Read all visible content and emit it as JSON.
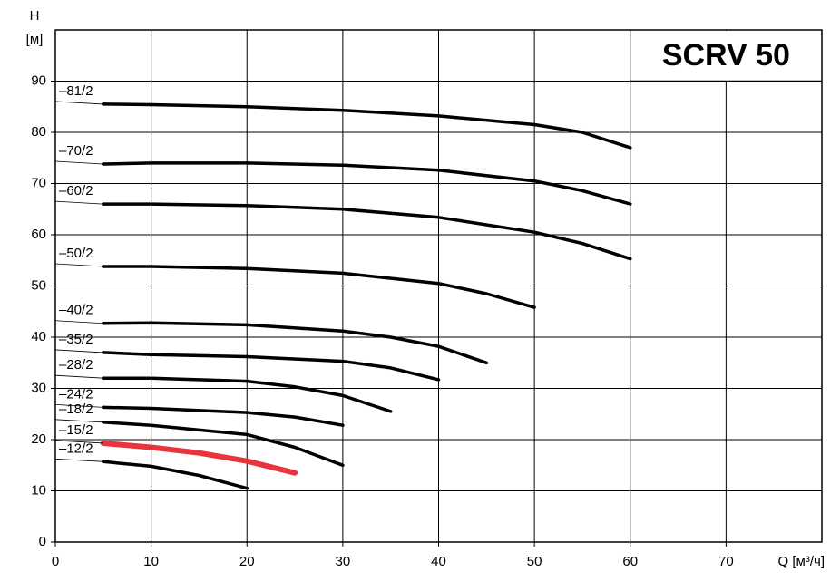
{
  "chart_data": {
    "type": "line",
    "title": "SCRV 50",
    "y_label": "H",
    "y_unit": "[м]",
    "x_label": "Q [м³/ч]",
    "xlim": [
      0,
      80
    ],
    "xticks": [
      0,
      10,
      20,
      30,
      40,
      50,
      60,
      70
    ],
    "ylim": [
      0,
      100
    ],
    "yticks": [
      0,
      10,
      20,
      30,
      40,
      50,
      60,
      70,
      80,
      90
    ],
    "grid": true,
    "series": [
      {
        "name": "–81/2",
        "color": "#000000",
        "x": [
          5,
          10,
          20,
          30,
          40,
          50,
          55,
          60
        ],
        "values": [
          85.5,
          85.4,
          85,
          84.3,
          83.2,
          81.5,
          80,
          77
        ]
      },
      {
        "name": "–70/2",
        "color": "#000000",
        "x": [
          5,
          10,
          20,
          30,
          40,
          50,
          55,
          60
        ],
        "values": [
          73.8,
          74,
          74,
          73.6,
          72.6,
          70.5,
          68.6,
          66
        ]
      },
      {
        "name": "–60/2",
        "color": "#000000",
        "x": [
          5,
          10,
          20,
          30,
          40,
          50,
          55,
          60
        ],
        "values": [
          66,
          66,
          65.7,
          65,
          63.4,
          60.5,
          58.3,
          55.3
        ]
      },
      {
        "name": "–50/2",
        "color": "#000000",
        "x": [
          5,
          10,
          20,
          30,
          40,
          45,
          50
        ],
        "values": [
          53.8,
          53.8,
          53.4,
          52.5,
          50.5,
          48.5,
          45.8
        ]
      },
      {
        "name": "–40/2",
        "color": "#000000",
        "x": [
          5,
          10,
          20,
          30,
          35,
          40,
          45
        ],
        "values": [
          42.7,
          42.8,
          42.4,
          41.2,
          40,
          38.2,
          35
        ]
      },
      {
        "name": "–35/2",
        "color": "#000000",
        "x": [
          5,
          10,
          20,
          30,
          35,
          40
        ],
        "values": [
          37,
          36.6,
          36.2,
          35.3,
          34,
          31.7
        ]
      },
      {
        "name": "–28/2",
        "color": "#000000",
        "x": [
          5,
          10,
          20,
          25,
          30,
          35
        ],
        "values": [
          32,
          32,
          31.4,
          30.3,
          28.6,
          25.5
        ]
      },
      {
        "name": "–24/2",
        "color": "#000000",
        "x": [
          5,
          10,
          20,
          25,
          30
        ],
        "values": [
          26.3,
          26.1,
          25.3,
          24.4,
          22.8
        ]
      },
      {
        "name": "–18/2",
        "color": "#000000",
        "x": [
          5,
          10,
          20,
          25,
          30
        ],
        "values": [
          23.4,
          22.8,
          21,
          18.5,
          15
        ]
      },
      {
        "name": "–15/2",
        "color": "#e8343c",
        "x": [
          5,
          10,
          15,
          20,
          25
        ],
        "values": [
          19.3,
          18.5,
          17.4,
          15.8,
          13.5
        ]
      },
      {
        "name": "–12/2",
        "color": "#000000",
        "x": [
          5,
          10,
          15,
          20
        ],
        "values": [
          15.7,
          14.8,
          13,
          10.5
        ]
      }
    ]
  }
}
